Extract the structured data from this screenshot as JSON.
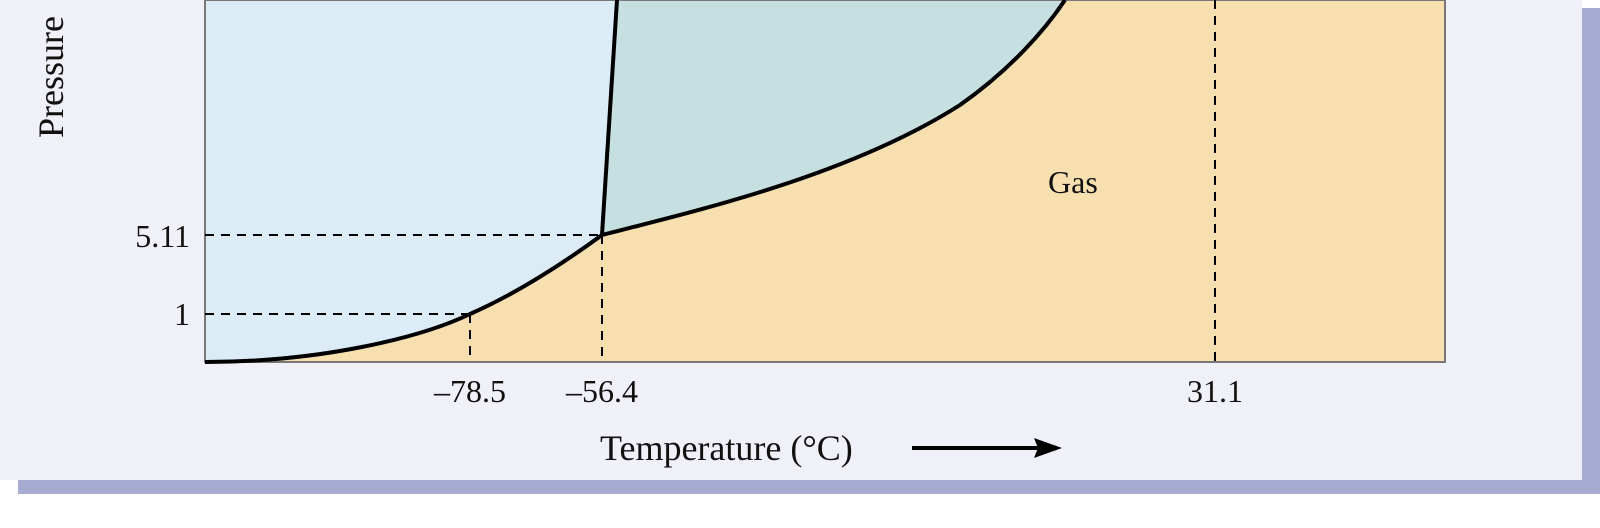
{
  "diagram": {
    "y_axis_title": "Pressure",
    "x_axis_title": "Temperature (°C)",
    "region_gas_label": "Gas",
    "x_ticks": [
      "–78.5",
      "–56.4",
      "31.1"
    ],
    "y_ticks": [
      "5.11",
      "1"
    ]
  },
  "colors": {
    "solid_region": "#dcecf7",
    "liquid_region": "#c6dfe0",
    "gas_region": "#f7dfb0",
    "border": "#777777",
    "curve": "#000000",
    "panel_bg": "#eff0f8",
    "panel_shadow": "#a7aad1"
  }
}
